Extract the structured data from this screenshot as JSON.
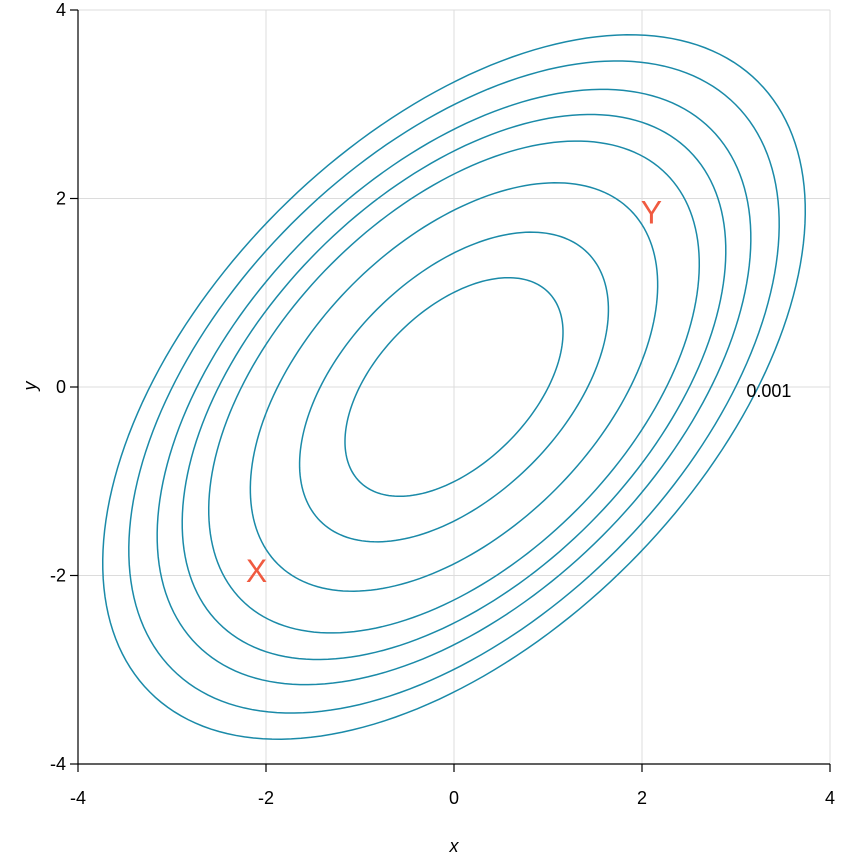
{
  "chart_data": {
    "type": "contour",
    "title": "",
    "xlabel": "x",
    "ylabel": "y",
    "xlim": [
      -4,
      4
    ],
    "ylim": [
      -4,
      4
    ],
    "x_ticks": [
      -4,
      -2,
      0,
      2,
      4
    ],
    "y_ticks": [
      -4,
      -2,
      0,
      2,
      4
    ],
    "x_tick_labels": [
      "-4",
      "-2",
      "0",
      "2",
      "4"
    ],
    "y_tick_labels": [
      "-4",
      "-2",
      "0",
      "2",
      "4"
    ],
    "grid": true,
    "distribution": {
      "name": "bivariate normal",
      "mean": [
        0,
        0
      ],
      "sd": [
        1.2,
        1.2
      ],
      "rho": 0.5
    },
    "contour_levels": [
      0.001,
      0.002,
      0.004,
      0.007,
      0.012,
      0.025,
      0.05,
      0.08
    ],
    "contour_label": {
      "text": "0.001",
      "x": 3.35,
      "y": 0
    },
    "points": [
      {
        "label": "X",
        "x": -2.1,
        "y": -1.95
      },
      {
        "label": "Y",
        "x": 2.1,
        "y": 1.85
      }
    ],
    "colors": {
      "contour": "#1a8aa8",
      "points": "#f05a40",
      "grid": "#dcdcdc"
    }
  }
}
